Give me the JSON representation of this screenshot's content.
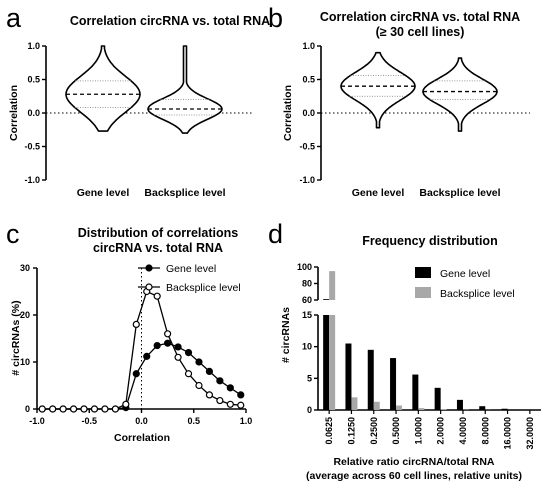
{
  "panel_labels": [
    "a",
    "b",
    "c",
    "d"
  ],
  "chart_data": [
    {
      "panel": "a",
      "type": "violin",
      "title": "Correlation circRNA vs. total RNA",
      "ylabel": "Correlation",
      "ylim": [
        -1.0,
        1.0
      ],
      "yticks": [
        "1.0",
        "0.5",
        "0.0",
        "-0.5",
        "-1.0"
      ],
      "categories": [
        "Gene level",
        "Backsplice level"
      ],
      "stats": [
        {
          "min": -0.27,
          "max": 1.0,
          "q1": 0.08,
          "median": 0.28,
          "q3": 0.48
        },
        {
          "min": -0.3,
          "max": 1.0,
          "q1": -0.03,
          "median": 0.06,
          "q3": 0.2
        }
      ],
      "reference_line": 0.0
    },
    {
      "panel": "b",
      "type": "violin",
      "title": "Correlation circRNA vs. total RNA",
      "subtitle": "(≥ 30 cell lines)",
      "ylabel": "Correlation",
      "ylim": [
        -1.0,
        1.0
      ],
      "yticks": [
        "1.0",
        "0.5",
        "0.0",
        "-0.5",
        "-1.0"
      ],
      "categories": [
        "Gene level",
        "Backsplice level"
      ],
      "stats": [
        {
          "min": -0.22,
          "max": 0.9,
          "q1": 0.25,
          "median": 0.4,
          "q3": 0.56
        },
        {
          "min": -0.27,
          "max": 0.82,
          "q1": 0.2,
          "median": 0.32,
          "q3": 0.48
        }
      ],
      "reference_line": 0.0
    },
    {
      "panel": "c",
      "type": "line",
      "title": "Distribution of correlations",
      "subtitle": "circRNA vs. total RNA",
      "xlabel": "Correlation",
      "ylabel": "# circRNAs (%)",
      "xlim": [
        -1.0,
        1.0
      ],
      "ylim": [
        0,
        30
      ],
      "xticks": [
        "-1.0",
        "-0.5",
        "0.0",
        "0.5",
        "1.0"
      ],
      "yticks": [
        "0",
        "10",
        "20",
        "30"
      ],
      "x": [
        -0.95,
        -0.85,
        -0.75,
        -0.65,
        -0.55,
        -0.45,
        -0.35,
        -0.25,
        -0.15,
        -0.05,
        0.05,
        0.15,
        0.25,
        0.35,
        0.45,
        0.55,
        0.65,
        0.75,
        0.85,
        0.95
      ],
      "series": [
        {
          "name": "Gene level",
          "marker": "filled",
          "values": [
            0,
            0,
            0,
            0,
            0,
            0,
            0,
            0,
            0.3,
            7.5,
            11.2,
            13.5,
            14.0,
            13.2,
            12.0,
            10.0,
            8.0,
            6.0,
            4.5,
            3.0
          ]
        },
        {
          "name": "Backsplice level",
          "marker": "open",
          "values": [
            0,
            0,
            0,
            0,
            0,
            0,
            0,
            0,
            1.0,
            18.0,
            25.0,
            24.0,
            16.0,
            11.0,
            7.5,
            5.0,
            3.0,
            1.8,
            1.0,
            0.8
          ]
        }
      ],
      "reference_line_x": 0.0,
      "legend": "top-right"
    },
    {
      "panel": "d",
      "type": "bar",
      "title": "Frequency distribution",
      "xlabel": "Relative ratio circRNA/total RNA",
      "xlabel2": "(average across 60 cell lines, relative units)",
      "ylabel": "# circRNAs",
      "y_axis": "broken",
      "yticks_upper": [
        "100",
        "80",
        "60"
      ],
      "yticks_lower": [
        "15",
        "10",
        "5",
        "0"
      ],
      "categories": [
        "0.0625",
        "0.1250",
        "0.2500",
        "0.5000",
        "1.0000",
        "2.0000",
        "4.0000",
        "8.0000",
        "16.0000",
        "32.0000"
      ],
      "series": [
        {
          "name": "Gene level",
          "color": "#000000",
          "values": [
            61,
            10.5,
            9.5,
            8.2,
            5.6,
            3.5,
            1.6,
            0.6,
            0.2,
            0.05
          ]
        },
        {
          "name": "Backsplice level",
          "color": "#a8a8a8",
          "values": [
            95,
            2.0,
            1.3,
            0.7,
            0.3,
            0.15,
            0.05,
            0.02,
            0,
            0
          ]
        }
      ],
      "legend": "top-right"
    }
  ]
}
